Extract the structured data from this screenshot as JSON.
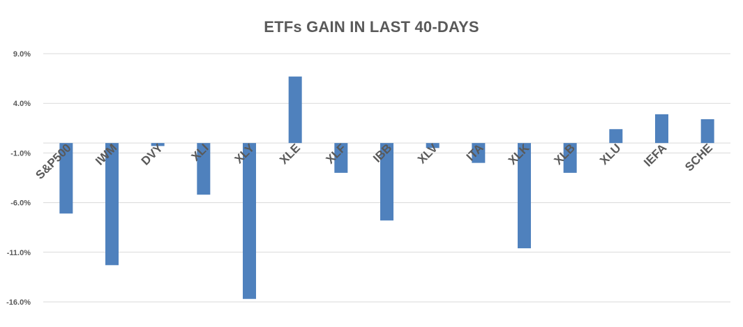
{
  "chart_data": {
    "type": "bar",
    "title": "ETFs GAIN IN LAST 40-DAYS",
    "xlabel": "",
    "ylabel": "",
    "categories": [
      "S&P500",
      "IWM",
      "DVY",
      "XLI",
      "XLY",
      "XLE",
      "XLF",
      "IBB",
      "XLV",
      "ITA",
      "XLK",
      "XLB",
      "XLU",
      "IEFA",
      "SCHE"
    ],
    "values": [
      -7.1,
      -12.3,
      -0.3,
      -5.2,
      -15.7,
      6.7,
      -3.0,
      -7.8,
      -0.5,
      -2.0,
      -10.6,
      -3.0,
      1.4,
      2.9,
      2.4
    ],
    "y_ticks": [
      "9.0%",
      "4.0%",
      "-1.0%",
      "-6.0%",
      "-11.0%",
      "-16.0%"
    ],
    "ylim": [
      -16,
      9
    ],
    "grid": true,
    "bar_color": "#4f81bd"
  }
}
